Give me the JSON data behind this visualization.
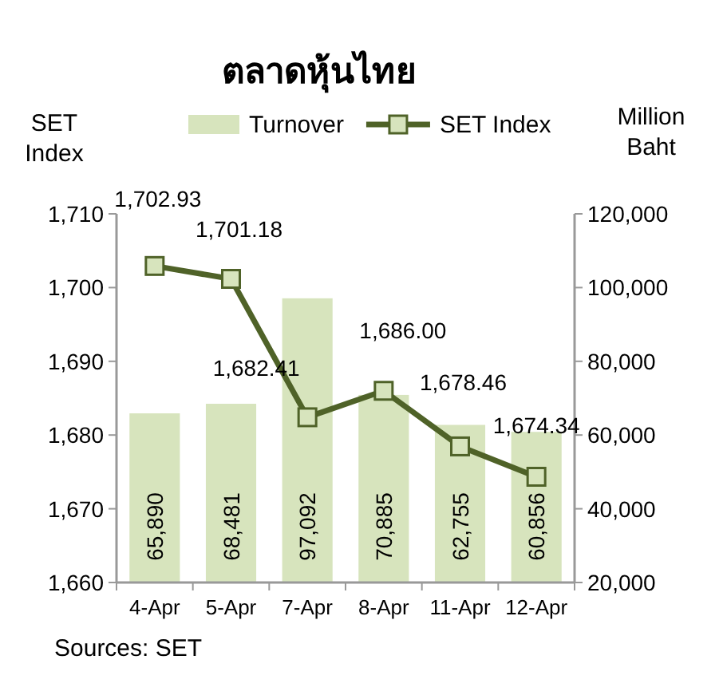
{
  "chart_data": {
    "type": "bar",
    "title": "ตลาดหุ้นไทย",
    "ylabel": "SET\nIndex",
    "y2label": "Million\nBaht",
    "categories": [
      "4-Apr",
      "5-Apr",
      "7-Apr",
      "8-Apr",
      "11-Apr",
      "12-Apr"
    ],
    "series": [
      {
        "name": "Turnover",
        "axis": "y2",
        "color": "#d7e4bd",
        "values": [
          65890,
          68481,
          97092,
          70885,
          62755,
          60856
        ],
        "value_labels": [
          "65,890",
          "68,481",
          "97,092",
          "70,885",
          "62,755",
          "60,856"
        ]
      },
      {
        "name": "SET Index",
        "type": "line",
        "axis": "y",
        "color": "#4f6228",
        "marker": "square",
        "values": [
          1702.93,
          1701.18,
          1682.41,
          1686.0,
          1678.46,
          1674.34
        ],
        "value_labels": [
          "1,702.93",
          "1,701.18",
          "1,682.41",
          "1,686.00",
          "1,678.46",
          "1,674.34"
        ]
      }
    ],
    "ylim": [
      1660,
      1710
    ],
    "yticks": [
      {
        "value": 1660,
        "label": "1,660"
      },
      {
        "value": 1670,
        "label": "1,670"
      },
      {
        "value": 1680,
        "label": "1,680"
      },
      {
        "value": 1690,
        "label": "1,690"
      },
      {
        "value": 1700,
        "label": "1,700"
      },
      {
        "value": 1710,
        "label": "1,710"
      }
    ],
    "y2lim": [
      20000,
      120000
    ],
    "y2ticks": [
      {
        "value": 20000,
        "label": "20,000"
      },
      {
        "value": 40000,
        "label": "40,000"
      },
      {
        "value": 60000,
        "label": "60,000"
      },
      {
        "value": 80000,
        "label": "80,000"
      },
      {
        "value": 100000,
        "label": "100,000"
      },
      {
        "value": 120000,
        "label": "120,000"
      }
    ],
    "grid": false,
    "legend": "top",
    "annotations": [
      "Sources: SET"
    ]
  }
}
